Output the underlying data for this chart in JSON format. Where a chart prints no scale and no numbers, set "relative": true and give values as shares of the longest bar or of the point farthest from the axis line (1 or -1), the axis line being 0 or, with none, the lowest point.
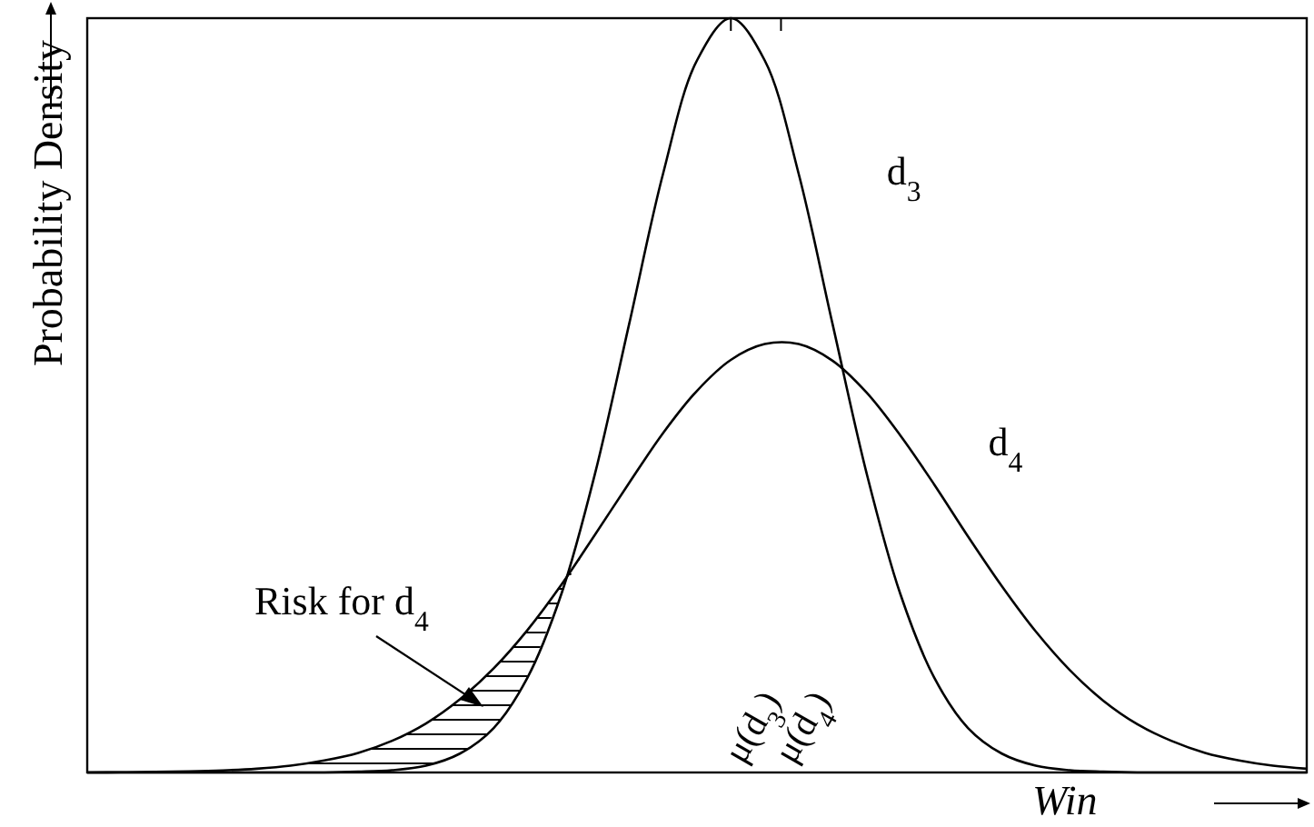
{
  "chart_data": {
    "type": "line",
    "relative": true,
    "xlabel": "Win",
    "ylabel": "Probability Density",
    "marker": "none",
    "line_style": "solid",
    "categories": [
      null,
      null,
      null,
      null,
      null,
      null,
      null,
      null,
      null,
      null,
      null,
      null,
      null,
      null,
      null,
      null,
      null,
      null,
      null,
      null,
      null,
      null,
      null,
      null,
      null,
      null,
      null,
      null,
      null,
      null,
      null,
      null,
      null,
      null,
      null,
      null,
      null
    ],
    "series": [
      {
        "name": "d$_{3}$",
        "color": "#000000",
        "values": [
          0,
          0,
          0,
          0,
          0,
          0,
          0,
          0,
          0.001,
          0.003,
          0.009,
          0.025,
          0.059,
          0.126,
          0.237,
          0.398,
          0.595,
          0.794,
          0.944,
          1,
          0.944,
          0.794,
          0.595,
          0.398,
          0.237,
          0.126,
          0.059,
          0.025,
          0.009,
          0.003,
          0.001,
          0,
          0,
          0,
          0,
          0,
          0
        ]
      },
      {
        "name": "d$_{4}$",
        "color": "#000000",
        "values": [
          0,
          0.0003,
          0.0007,
          0.0014,
          0.0027,
          0.005,
          0.009,
          0.016,
          0.026,
          0.042,
          0.065,
          0.097,
          0.138,
          0.189,
          0.249,
          0.316,
          0.384,
          0.45,
          0.506,
          0.547,
          0.568,
          0.568,
          0.546,
          0.504,
          0.447,
          0.382,
          0.313,
          0.247,
          0.187,
          0.136,
          0.095,
          0.064,
          0.042,
          0.026,
          0.016,
          0.009,
          0.005
        ]
      }
    ],
    "annotations": [
      "Risk for d$_{4}$",
      "μ(d$_{3}$)",
      "μ(d$_{4}$)"
    ]
  }
}
